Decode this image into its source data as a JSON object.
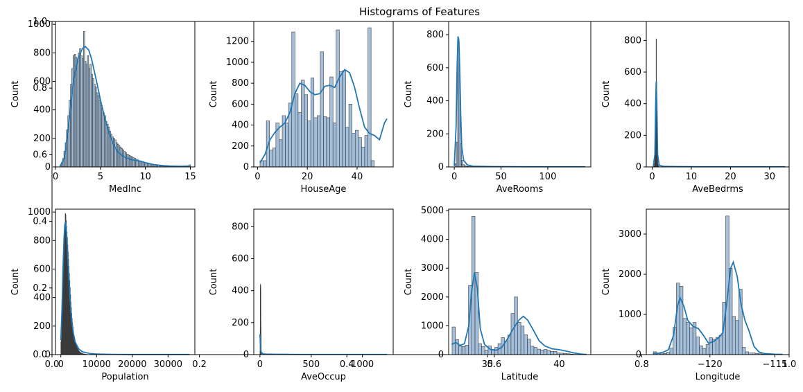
{
  "figure": {
    "title": "Histograms of Features",
    "background_axis": {
      "xticks": [
        "0.0",
        "0.2",
        "0.4",
        "0.6",
        "0.8",
        "1.0"
      ],
      "yticks": [
        "0.0",
        "0.2",
        "0.4",
        "0.6",
        "0.8",
        "1.0"
      ]
    }
  },
  "colors": {
    "bar_fill": "#9ebcda",
    "bar_edge": "#3a3a3a",
    "kde": "#1f77b4"
  },
  "chart_data": [
    {
      "type": "bar",
      "xlabel": "MedInc",
      "ylabel": "Count",
      "xlim": [
        0,
        15.5
      ],
      "ylim": [
        0,
        1020
      ],
      "xticks": [
        0,
        5,
        10,
        15
      ],
      "yticks": [
        0,
        200,
        400,
        600,
        800,
        1000
      ],
      "bins": {
        "start": 0.5,
        "width": 0.145,
        "counts": [
          10,
          30,
          60,
          110,
          170,
          260,
          360,
          470,
          580,
          690,
          780,
          790,
          770,
          750,
          800,
          830,
          780,
          760,
          950,
          740,
          720,
          780,
          690,
          720,
          650,
          620,
          580,
          560,
          520,
          500,
          470,
          430,
          410,
          380,
          360,
          320,
          300,
          280,
          250,
          230,
          210,
          200,
          190,
          170,
          160,
          150,
          140,
          130,
          120,
          110,
          100,
          90,
          85,
          80,
          75,
          70,
          65,
          60,
          55,
          50,
          45,
          40,
          38,
          35,
          32,
          30,
          28,
          26,
          24,
          22,
          20,
          19,
          18,
          17,
          16,
          15,
          14,
          13,
          12,
          11,
          10,
          10,
          9,
          9,
          8,
          8,
          7,
          7,
          6,
          6,
          6,
          5,
          5,
          5,
          4,
          4,
          4,
          3,
          3,
          15
        ]
      },
      "kde": [
        [
          0.5,
          5
        ],
        [
          1.0,
          60
        ],
        [
          1.5,
          320
        ],
        [
          2.0,
          600
        ],
        [
          2.5,
          760
        ],
        [
          3.0,
          830
        ],
        [
          3.3,
          845
        ],
        [
          3.7,
          820
        ],
        [
          4.0,
          760
        ],
        [
          4.5,
          620
        ],
        [
          5.0,
          470
        ],
        [
          5.5,
          340
        ],
        [
          6.0,
          230
        ],
        [
          6.5,
          150
        ],
        [
          7.0,
          100
        ],
        [
          7.5,
          75
        ],
        [
          8.0,
          60
        ],
        [
          8.5,
          50
        ],
        [
          9.0,
          45
        ],
        [
          9.5,
          40
        ],
        [
          10.0,
          30
        ],
        [
          11.0,
          15
        ],
        [
          12.0,
          8
        ],
        [
          13.0,
          5
        ],
        [
          14.0,
          4
        ],
        [
          14.8,
          6
        ],
        [
          15.0,
          2
        ]
      ]
    },
    {
      "type": "bar",
      "xlabel": "HouseAge",
      "ylabel": "Count",
      "xlim": [
        -1.5,
        54.5
      ],
      "ylim": [
        0,
        1390
      ],
      "xticks": [
        0,
        20,
        40
      ],
      "yticks": [
        0,
        200,
        400,
        600,
        800,
        1000,
        1200
      ],
      "bins": {
        "start": 1,
        "width": 1.275,
        "counts": [
          60,
          60,
          440,
          160,
          180,
          420,
          260,
          490,
          420,
          610,
          1290,
          700,
          520,
          830,
          690,
          440,
          850,
          470,
          490,
          1100,
          480,
          470,
          860,
          420,
          1310,
          910,
          920,
          380,
          600,
          320,
          350,
          280,
          190,
          300,
          1330,
          60
        ]
      },
      "kde": [
        [
          1,
          40
        ],
        [
          3,
          120
        ],
        [
          5,
          260
        ],
        [
          7,
          330
        ],
        [
          9,
          380
        ],
        [
          11,
          420
        ],
        [
          13,
          520
        ],
        [
          15,
          700
        ],
        [
          17,
          800
        ],
        [
          19,
          780
        ],
        [
          21,
          720
        ],
        [
          23,
          690
        ],
        [
          25,
          700
        ],
        [
          27,
          770
        ],
        [
          29,
          780
        ],
        [
          31,
          760
        ],
        [
          33,
          860
        ],
        [
          35,
          930
        ],
        [
          37,
          900
        ],
        [
          39,
          760
        ],
        [
          41,
          560
        ],
        [
          43,
          380
        ],
        [
          45,
          320
        ],
        [
          47,
          300
        ],
        [
          49,
          260
        ],
        [
          51,
          420
        ],
        [
          52,
          460
        ]
      ]
    },
    {
      "type": "bar",
      "xlabel": "AveRooms",
      "ylabel": "Count",
      "xlim": [
        -6,
        146
      ],
      "ylim": [
        0,
        880
      ],
      "xticks": [
        0,
        50,
        100
      ],
      "yticks": [
        0,
        200,
        400,
        600,
        800
      ],
      "bins": {
        "start": 0.8,
        "width": 1.4,
        "counts": [
          20,
          150,
          780,
          560,
          140,
          40,
          15,
          8,
          5,
          3,
          2,
          2,
          1,
          1,
          1
        ]
      },
      "kde": [
        [
          0,
          5
        ],
        [
          2,
          250
        ],
        [
          3,
          600
        ],
        [
          4,
          790
        ],
        [
          5,
          760
        ],
        [
          6,
          550
        ],
        [
          7,
          300
        ],
        [
          8,
          120
        ],
        [
          10,
          40
        ],
        [
          14,
          12
        ],
        [
          20,
          4
        ],
        [
          40,
          2
        ],
        [
          80,
          1
        ],
        [
          140,
          1
        ]
      ]
    },
    {
      "type": "bar",
      "xlabel": "AveBedrms",
      "ylabel": "Count",
      "xlim": [
        -1.5,
        35
      ],
      "ylim": [
        0,
        920
      ],
      "xticks": [
        0,
        10,
        20,
        30
      ],
      "yticks": [
        0,
        200,
        400,
        600,
        800
      ],
      "bins": {
        "start": 0.5,
        "width": 0.085,
        "counts": [
          4,
          20,
          60,
          140,
          300,
          520,
          810,
          540,
          260,
          110,
          45,
          18,
          8,
          4,
          2
        ]
      },
      "kde": [
        [
          0.3,
          2
        ],
        [
          0.7,
          80
        ],
        [
          0.9,
          400
        ],
        [
          1.05,
          540
        ],
        [
          1.2,
          400
        ],
        [
          1.4,
          80
        ],
        [
          1.8,
          10
        ],
        [
          3,
          3
        ],
        [
          6,
          2
        ],
        [
          12,
          1
        ],
        [
          34,
          1
        ]
      ]
    },
    {
      "type": "bar",
      "xlabel": "Population",
      "ylabel": "Count",
      "xlim": [
        -1500,
        37500
      ],
      "ylim": [
        0,
        1020
      ],
      "xticks": [
        0,
        10000,
        20000,
        30000
      ],
      "yticks": [
        0,
        200,
        400,
        600,
        800,
        1000
      ],
      "bins": {
        "start": 3,
        "width": 110,
        "counts": [
          90,
          140,
          230,
          320,
          420,
          520,
          610,
          700,
          780,
          860,
          920,
          990,
          980,
          940,
          900,
          860,
          820,
          770,
          720,
          670,
          620,
          570,
          520,
          470,
          420,
          370,
          330,
          290,
          255,
          225,
          195,
          170,
          150,
          130,
          115,
          100,
          90,
          80,
          70,
          62,
          55,
          48,
          42,
          37,
          32,
          28,
          24,
          21,
          18,
          16,
          14,
          12,
          10,
          9,
          8,
          7,
          6,
          5,
          5,
          4,
          4,
          3,
          3,
          3,
          2,
          2
        ]
      },
      "kde": [
        [
          0,
          100
        ],
        [
          300,
          300
        ],
        [
          600,
          600
        ],
        [
          900,
          820
        ],
        [
          1100,
          910
        ],
        [
          1300,
          930
        ],
        [
          1500,
          880
        ],
        [
          1800,
          760
        ],
        [
          2200,
          560
        ],
        [
          2600,
          380
        ],
        [
          3000,
          250
        ],
        [
          3500,
          150
        ],
        [
          4000,
          90
        ],
        [
          5000,
          40
        ],
        [
          6000,
          20
        ],
        [
          8000,
          8
        ],
        [
          10000,
          4
        ],
        [
          14000,
          2
        ],
        [
          20000,
          1
        ],
        [
          36000,
          1
        ]
      ]
    },
    {
      "type": "bar",
      "xlabel": "AveOccup",
      "ylabel": "Count",
      "xlim": [
        -60,
        1300
      ],
      "ylim": [
        0,
        910
      ],
      "xticks": [
        0,
        500,
        1000
      ],
      "yticks": [
        0,
        200,
        400,
        600,
        800
      ],
      "bins": {
        "start": 0.7,
        "width": 0.45,
        "counts": [
          5,
          20,
          80,
          160,
          250,
          320,
          380,
          420,
          440,
          430,
          400,
          360,
          310,
          260,
          210,
          170,
          130,
          100,
          75,
          55,
          40,
          30,
          22,
          16,
          12,
          9,
          7,
          5,
          4,
          3
        ]
      },
      "kde": [
        [
          0,
          125
        ],
        [
          3,
          90
        ],
        [
          6,
          40
        ],
        [
          12,
          15
        ],
        [
          30,
          5
        ],
        [
          60,
          3
        ],
        [
          150,
          2
        ],
        [
          400,
          1
        ],
        [
          1240,
          1
        ]
      ]
    },
    {
      "type": "bar",
      "xlabel": "Latitude",
      "ylabel": "Count",
      "xlim": [
        32.3,
        42.2
      ],
      "ylim": [
        0,
        5050
      ],
      "xticks": [
        35,
        40
      ],
      "yticks": [
        0,
        1000,
        2000,
        3000,
        4000,
        5000
      ],
      "bins": {
        "start": 32.54,
        "width": 0.228,
        "counts": [
          960,
          520,
          300,
          280,
          330,
          2400,
          4800,
          2850,
          380,
          280,
          160,
          300,
          180,
          250,
          380,
          590,
          460,
          680,
          1430,
          2000,
          1120,
          990,
          690,
          540,
          290,
          250,
          190,
          160,
          180,
          150,
          110,
          110,
          60,
          50,
          40,
          30,
          20,
          10,
          5,
          5,
          5
        ]
      },
      "kde": [
        [
          32.5,
          350
        ],
        [
          32.8,
          420
        ],
        [
          33.1,
          320
        ],
        [
          33.4,
          380
        ],
        [
          33.7,
          1000
        ],
        [
          33.9,
          2200
        ],
        [
          34.1,
          2850
        ],
        [
          34.3,
          2300
        ],
        [
          34.5,
          900
        ],
        [
          34.8,
          350
        ],
        [
          35.2,
          180
        ],
        [
          35.6,
          150
        ],
        [
          36.0,
          250
        ],
        [
          36.4,
          550
        ],
        [
          36.8,
          900
        ],
        [
          37.2,
          1200
        ],
        [
          37.5,
          1330
        ],
        [
          37.8,
          1200
        ],
        [
          38.2,
          850
        ],
        [
          38.6,
          480
        ],
        [
          39.0,
          300
        ],
        [
          39.5,
          200
        ],
        [
          40.0,
          170
        ],
        [
          40.5,
          120
        ],
        [
          41.0,
          60
        ],
        [
          41.5,
          20
        ],
        [
          41.9,
          5
        ]
      ]
    },
    {
      "type": "bar",
      "xlabel": "Longitude",
      "ylabel": "Count",
      "xlim": [
        -124.9,
        -113.9
      ],
      "ylim": [
        0,
        3620
      ],
      "xticks": [
        -120,
        -115
      ],
      "yticks": [
        0,
        1000,
        2000,
        3000
      ],
      "bins": {
        "start": -124.35,
        "width": 0.253,
        "counts": [
          70,
          40,
          20,
          30,
          60,
          160,
          680,
          1780,
          1700,
          900,
          800,
          670,
          800,
          440,
          220,
          150,
          250,
          420,
          380,
          430,
          480,
          1300,
          3450,
          2150,
          950,
          850,
          1630,
          180,
          70,
          40,
          40,
          30,
          20,
          10,
          10,
          5,
          5,
          5
        ]
      },
      "kde": [
        [
          -124.4,
          30
        ],
        [
          -124.0,
          30
        ],
        [
          -123.6,
          60
        ],
        [
          -123.2,
          120
        ],
        [
          -122.8,
          480
        ],
        [
          -122.5,
          1200
        ],
        [
          -122.3,
          1420
        ],
        [
          -122.0,
          1200
        ],
        [
          -121.7,
          850
        ],
        [
          -121.3,
          700
        ],
        [
          -120.9,
          650
        ],
        [
          -120.5,
          480
        ],
        [
          -120.1,
          280
        ],
        [
          -119.7,
          330
        ],
        [
          -119.3,
          430
        ],
        [
          -119.0,
          550
        ],
        [
          -118.7,
          1300
        ],
        [
          -118.4,
          2150
        ],
        [
          -118.2,
          2300
        ],
        [
          -117.9,
          1950
        ],
        [
          -117.6,
          1250
        ],
        [
          -117.3,
          850
        ],
        [
          -117.0,
          600
        ],
        [
          -116.6,
          200
        ],
        [
          -116.2,
          60
        ],
        [
          -115.8,
          25
        ],
        [
          -115.0,
          10
        ],
        [
          -114.4,
          5
        ]
      ]
    }
  ]
}
